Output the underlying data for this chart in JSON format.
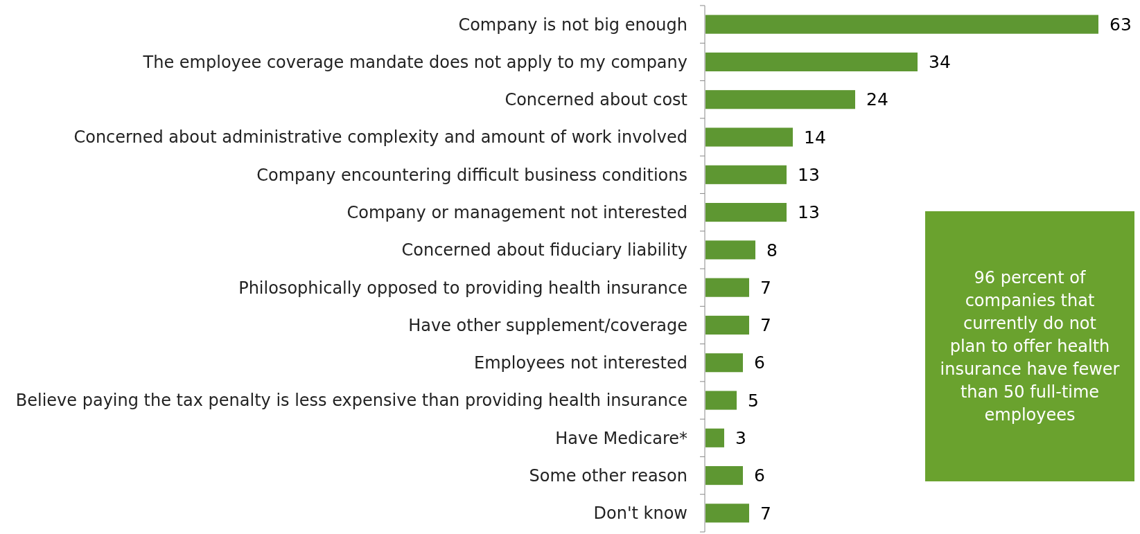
{
  "chart_data": {
    "type": "bar",
    "orientation": "horizontal",
    "color": "#5e9732",
    "data_labels": true,
    "categories": [
      "Company is not big enough",
      "The employee coverage mandate does not apply to my company",
      "Concerned about cost",
      "Concerned about administrative complexity and amount of work involved",
      "Company encountering difficult business conditions",
      "Company or management not interested",
      "Concerned about fiduciary liability",
      "Philosophically opposed to providing health insurance",
      "Have other supplement/coverage",
      "Employees not interested",
      "Believe paying the tax penalty is less expensive than providing health insurance",
      "Have Medicare*",
      "Some other reason",
      "Don't know"
    ],
    "values": [
      63,
      34,
      24,
      14,
      13,
      13,
      8,
      7,
      7,
      6,
      5,
      3,
      6,
      7
    ],
    "annotations": [
      "96 percent of companies that currently do not plan to offer health insurance have fewer than 50 full-time employees"
    ]
  }
}
